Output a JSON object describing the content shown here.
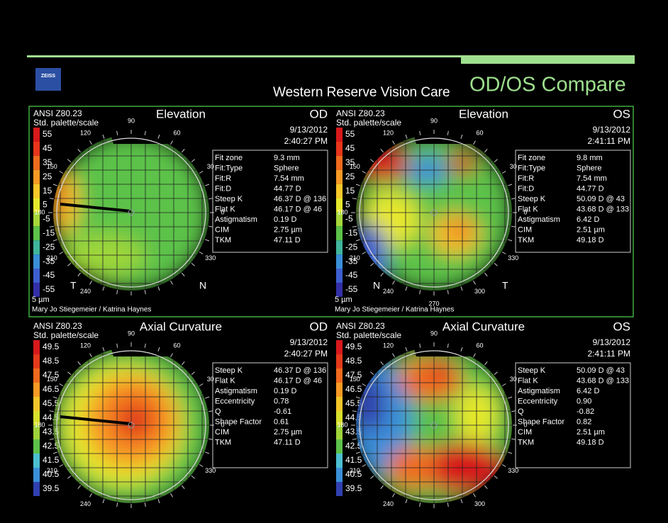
{
  "header": {
    "logo": "ZEISS",
    "clinic": "Western Reserve Vision Care",
    "title": "OD/OS Compare"
  },
  "panels": [
    {
      "standard": "ANSI Z80.23",
      "palette": "Std. palette/scale",
      "map_title": "Elevation",
      "eye": "OD",
      "date": "9/13/2012",
      "time": "2:40:27 PM",
      "scale": [
        "55",
        "45",
        "35",
        "25",
        "15",
        "5",
        "-5",
        "-15",
        "-25",
        "-35",
        "-45",
        "-55"
      ],
      "unit": "5 µm",
      "patient": "Mary Jo Stiegemeier / Katrina Haynes",
      "sides": [
        "T",
        "N"
      ],
      "angles": [
        "90",
        "120",
        "60",
        "150",
        "30",
        "180",
        "0",
        "210",
        "330",
        "240"
      ],
      "info": [
        [
          "Fit zone",
          "9.3 mm"
        ],
        [
          "Fit:Type",
          "Sphere"
        ],
        [
          "Fit:R",
          "7.54 mm"
        ],
        [
          "Fit:D",
          "44.77 D"
        ],
        [
          "Steep K",
          "46.37 D @ 136"
        ],
        [
          "Flat K",
          "46.17 D @ 46"
        ],
        [
          "Astigmatism",
          "0.19 D"
        ],
        [
          "CIM",
          "2.75 µm"
        ],
        [
          "TKM",
          "47.11 D"
        ]
      ]
    },
    {
      "standard": "ANSI Z80.23",
      "palette": "Std. palette/scale",
      "map_title": "Elevation",
      "eye": "OS",
      "date": "9/13/2012",
      "time": "2:41:11 PM",
      "scale": [
        "55",
        "45",
        "35",
        "25",
        "15",
        "5",
        "-5",
        "-15",
        "-25",
        "-35",
        "-45",
        "-55"
      ],
      "unit": "5 µm",
      "patient": "Mary Jo Stiegemeier / Katrina Haynes",
      "sides": [
        "N",
        "T"
      ],
      "angles": [
        "90",
        "120",
        "60",
        "150",
        "30",
        "180",
        "0",
        "210",
        "330",
        "240",
        "300",
        "270"
      ],
      "info": [
        [
          "Fit zone",
          "9.8 mm"
        ],
        [
          "Fit:Type",
          "Sphere"
        ],
        [
          "Fit:R",
          "7.54 mm"
        ],
        [
          "Fit:D",
          "44.77 D"
        ],
        [
          "Steep K",
          "50.09 D @ 43"
        ],
        [
          "Flat K",
          "43.68 D @ 133"
        ],
        [
          "Astigmatism",
          "6.42 D"
        ],
        [
          "CIM",
          "2.51 µm"
        ],
        [
          "TKM",
          "49.18 D"
        ]
      ]
    },
    {
      "standard": "ANSI Z80.23",
      "palette": "Std. palette/scale",
      "map_title": "Axial Curvature",
      "eye": "OD",
      "date": "9/13/2012",
      "time": "2:40:27 PM",
      "scale": [
        "49.5",
        "48.5",
        "47.5",
        "46.5",
        "45.5",
        "44.5",
        "43.5",
        "42.5",
        "41.5",
        "40.5",
        "39.5"
      ],
      "angles": [
        "90",
        "120",
        "60",
        "150",
        "30",
        "180",
        "0",
        "210",
        "330",
        "240"
      ],
      "info": [
        [
          "Steep K",
          "46.37 D @ 136"
        ],
        [
          "Flat K",
          "46.17 D @ 46"
        ],
        [
          "Astigmatism",
          "0.19 D"
        ],
        [
          "Eccentricity",
          "0.78"
        ],
        [
          "Q",
          "-0.61"
        ],
        [
          "Shape Factor",
          "0.61"
        ],
        [
          "CIM",
          "2.75 µm"
        ],
        [
          "TKM",
          "47.11 D"
        ]
      ]
    },
    {
      "standard": "ANSI Z80.23",
      "palette": "Std. palette/scale",
      "map_title": "Axial Curvature",
      "eye": "OS",
      "date": "9/13/2012",
      "time": "2:41:11 PM",
      "scale": [
        "49.5",
        "48.5",
        "47.5",
        "46.5",
        "45.5",
        "44.5",
        "43.5",
        "42.5",
        "41.5",
        "40.5",
        "39.5"
      ],
      "angles": [
        "90",
        "120",
        "60",
        "150",
        "30",
        "180",
        "0",
        "210",
        "330",
        "240",
        "300"
      ],
      "info": [
        [
          "Steep K",
          "50.09 D @ 43"
        ],
        [
          "Flat K",
          "43.68 D @ 133"
        ],
        [
          "Astigmatism",
          "6.42 D"
        ],
        [
          "Eccentricity",
          "0.90"
        ],
        [
          "Q",
          "-0.82"
        ],
        [
          "Shape Factor",
          "0.82"
        ],
        [
          "CIM",
          "2.51 µm"
        ],
        [
          "TKM",
          "49.18 D"
        ]
      ]
    }
  ]
}
